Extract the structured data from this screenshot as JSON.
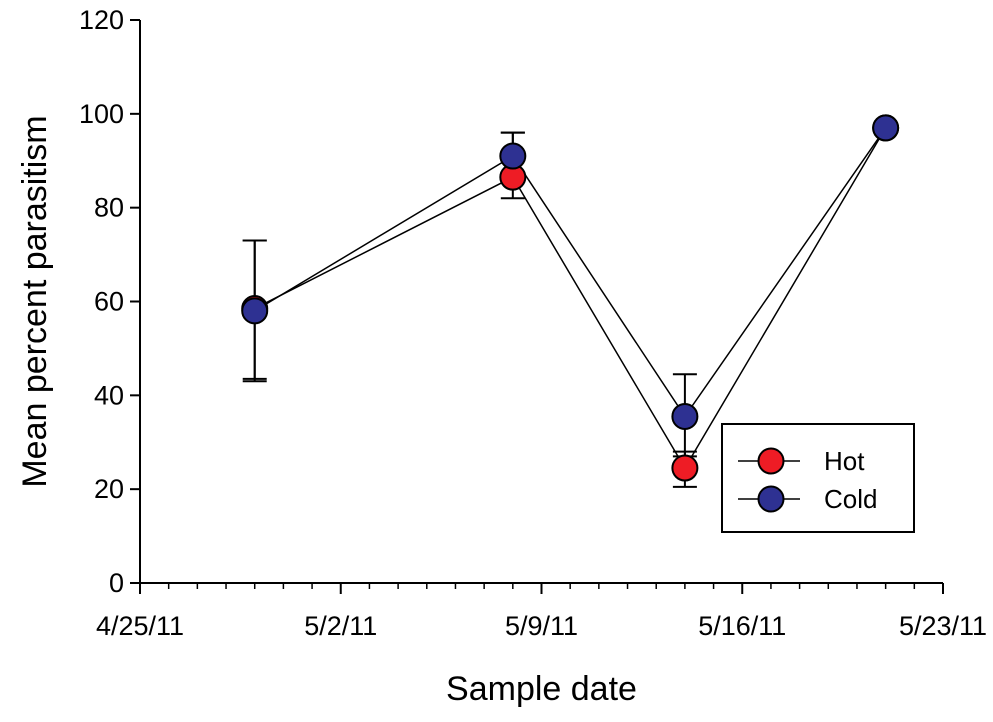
{
  "chart_data": {
    "type": "line",
    "xlabel": "Sample date",
    "ylabel": "Mean percent parasitism",
    "xlim": [
      "2011-04-25",
      "2011-05-23"
    ],
    "ylim": [
      0,
      120
    ],
    "x_ticks": [
      "2011-04-25",
      "2011-05-02",
      "2011-05-09",
      "2011-05-16",
      "2011-05-23"
    ],
    "x_tick_labels": [
      "4/25/11",
      "5/2/11",
      "5/9/11",
      "5/16/11",
      "5/23/11"
    ],
    "y_ticks": [
      0,
      20,
      40,
      60,
      80,
      100,
      120
    ],
    "y_tick_labels": [
      "0",
      "20",
      "40",
      "60",
      "80",
      "100",
      "120"
    ],
    "x_minor_tick_step_days": 1,
    "grid": false,
    "legend_position": "lower-right",
    "x": [
      "2011-04-29",
      "2011-05-08",
      "2011-05-14",
      "2011-05-21"
    ],
    "series": [
      {
        "name": "Hot",
        "color": "#ee1c25",
        "values": [
          58.5,
          86.5,
          24.5,
          97
        ],
        "error_upper": [
          73,
          96,
          28,
          98
        ],
        "error_lower": [
          43.5,
          82,
          20.5,
          96
        ]
      },
      {
        "name": "Cold",
        "color": "#2e3192",
        "values": [
          58,
          91,
          35.5,
          97
        ],
        "error_upper": [
          73,
          96,
          44.5,
          98
        ],
        "error_lower": [
          43,
          86,
          27,
          96
        ]
      }
    ]
  }
}
